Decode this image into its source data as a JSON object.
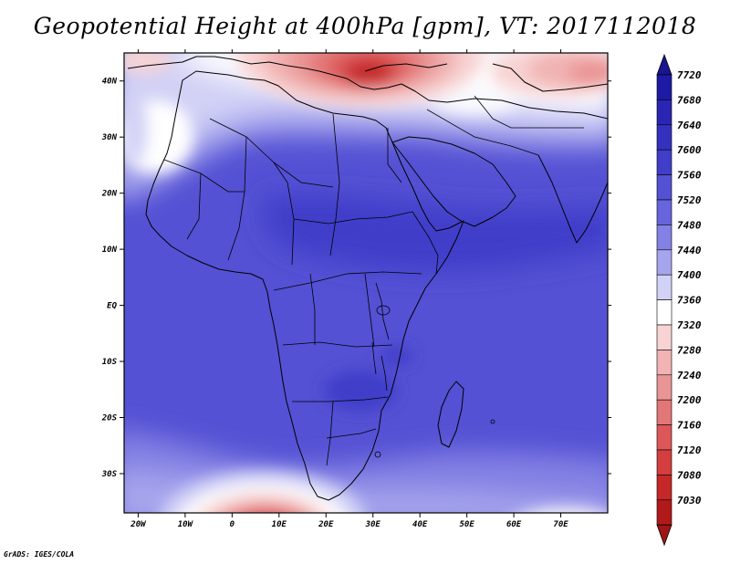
{
  "title": "Geopotential Height at 400hPa [gpm], VT: 2017112018",
  "credit": "GrADS: IGES/COLA",
  "map": {
    "lon_range": [
      -23,
      80
    ],
    "lat_range": [
      -37,
      45
    ],
    "lon_ticks": [
      {
        "lon": -20,
        "label": "20W"
      },
      {
        "lon": -10,
        "label": "10W"
      },
      {
        "lon": 0,
        "label": "0"
      },
      {
        "lon": 10,
        "label": "10E"
      },
      {
        "lon": 20,
        "label": "20E"
      },
      {
        "lon": 30,
        "label": "30E"
      },
      {
        "lon": 40,
        "label": "40E"
      },
      {
        "lon": 50,
        "label": "50E"
      },
      {
        "lon": 60,
        "label": "60E"
      },
      {
        "lon": 70,
        "label": "70E"
      }
    ],
    "lat_ticks": [
      {
        "lat": 40,
        "label": "40N"
      },
      {
        "lat": 30,
        "label": "30N"
      },
      {
        "lat": 20,
        "label": "20N"
      },
      {
        "lat": 10,
        "label": "10N"
      },
      {
        "lat": 0,
        "label": "EQ"
      },
      {
        "lat": -10,
        "label": "10S"
      },
      {
        "lat": -20,
        "label": "20S"
      },
      {
        "lat": -30,
        "label": "30S"
      }
    ]
  },
  "colorbar": {
    "levels": [
      {
        "label": "7720",
        "color": "#1f1aa3"
      },
      {
        "label": "7680",
        "color": "#2a25b2"
      },
      {
        "label": "7640",
        "color": "#3531bf"
      },
      {
        "label": "7600",
        "color": "#413ec9"
      },
      {
        "label": "7560",
        "color": "#5451d4"
      },
      {
        "label": "7520",
        "color": "#6764dc"
      },
      {
        "label": "7480",
        "color": "#8481e4"
      },
      {
        "label": "7440",
        "color": "#a6a4ec"
      },
      {
        "label": "7400",
        "color": "#d2d1f6"
      },
      {
        "label": "7360",
        "color": "#ffffff"
      },
      {
        "label": "7320",
        "color": "#f8d3d3"
      },
      {
        "label": "7280",
        "color": "#f1b3b3"
      },
      {
        "label": "7240",
        "color": "#ea9595"
      },
      {
        "label": "7200",
        "color": "#e37777"
      },
      {
        "label": "7160",
        "color": "#dc5858"
      },
      {
        "label": "7120",
        "color": "#d43e3e"
      },
      {
        "label": "7080",
        "color": "#c52828"
      },
      {
        "label": "7030",
        "color": "#b01a1a"
      }
    ],
    "top_color": "#1a1490",
    "bottom_color": "#a01515"
  }
}
